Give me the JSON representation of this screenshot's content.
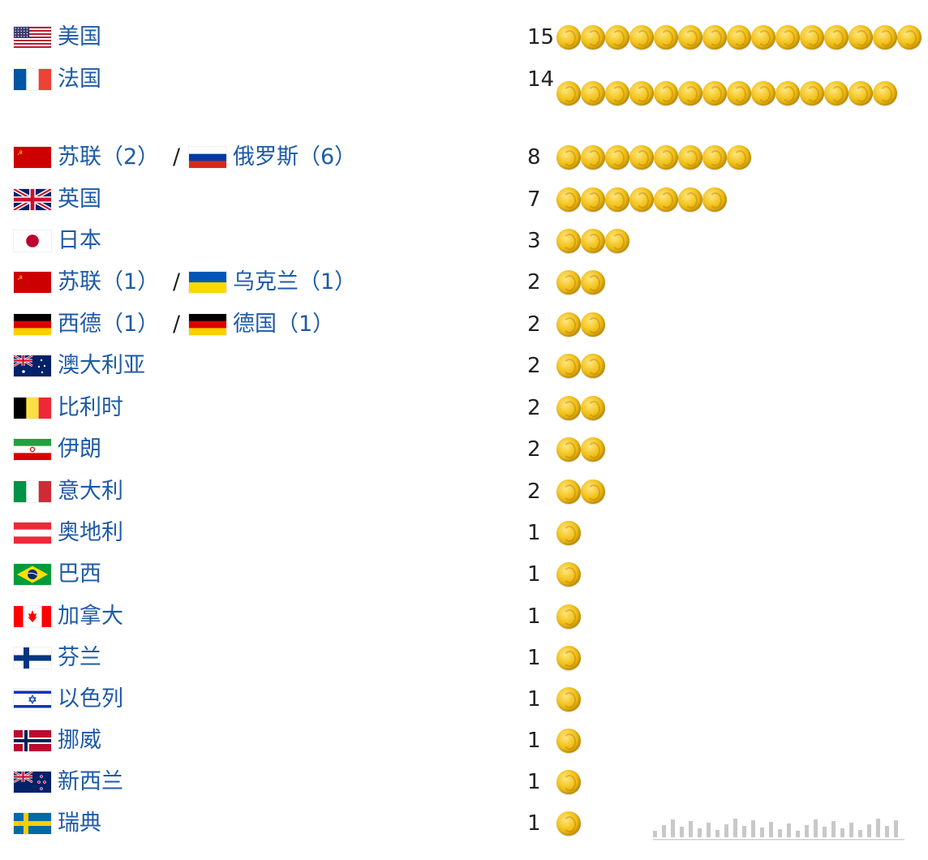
{
  "chart_data": {
    "type": "bar",
    "rows": [
      {
        "entries": [
          {
            "flag": "us",
            "label": "美国"
          }
        ],
        "value": 15,
        "value_text": "15"
      },
      {
        "entries": [
          {
            "flag": "fr",
            "label": "法国"
          }
        ],
        "value": 14,
        "value_text": "14"
      },
      {
        "entries": [
          {
            "flag": "su",
            "label": "苏联（2）"
          },
          {
            "flag": "ru",
            "label": "俄罗斯（6）"
          }
        ],
        "value": 8,
        "value_text": "8"
      },
      {
        "entries": [
          {
            "flag": "gb",
            "label": "英国"
          }
        ],
        "value": 7,
        "value_text": "7"
      },
      {
        "entries": [
          {
            "flag": "jp",
            "label": "日本"
          }
        ],
        "value": 3,
        "value_text": "3"
      },
      {
        "entries": [
          {
            "flag": "su",
            "label": "苏联（1）"
          },
          {
            "flag": "ua",
            "label": "乌克兰（1）"
          }
        ],
        "value": 2,
        "value_text": "2"
      },
      {
        "entries": [
          {
            "flag": "de",
            "label": "西德（1）"
          },
          {
            "flag": "de",
            "label": "德国（1）"
          }
        ],
        "value": 2,
        "value_text": "2"
      },
      {
        "entries": [
          {
            "flag": "au",
            "label": "澳大利亚"
          }
        ],
        "value": 2,
        "value_text": "2"
      },
      {
        "entries": [
          {
            "flag": "be",
            "label": "比利时"
          }
        ],
        "value": 2,
        "value_text": "2"
      },
      {
        "entries": [
          {
            "flag": "ir",
            "label": "伊朗"
          }
        ],
        "value": 2,
        "value_text": "2"
      },
      {
        "entries": [
          {
            "flag": "it",
            "label": "意大利"
          }
        ],
        "value": 2,
        "value_text": "2"
      },
      {
        "entries": [
          {
            "flag": "at",
            "label": "奥地利"
          }
        ],
        "value": 1,
        "value_text": "1"
      },
      {
        "entries": [
          {
            "flag": "br",
            "label": "巴西"
          }
        ],
        "value": 1,
        "value_text": "1"
      },
      {
        "entries": [
          {
            "flag": "ca",
            "label": "加拿大"
          }
        ],
        "value": 1,
        "value_text": "1"
      },
      {
        "entries": [
          {
            "flag": "fi",
            "label": "芬兰"
          }
        ],
        "value": 1,
        "value_text": "1"
      },
      {
        "entries": [
          {
            "flag": "il",
            "label": "以色列"
          }
        ],
        "value": 1,
        "value_text": "1"
      },
      {
        "entries": [
          {
            "flag": "no",
            "label": "挪威"
          }
        ],
        "value": 1,
        "value_text": "1"
      },
      {
        "entries": [
          {
            "flag": "nz",
            "label": "新西兰"
          }
        ],
        "value": 1,
        "value_text": "1"
      },
      {
        "entries": [
          {
            "flag": "se",
            "label": "瑞典"
          }
        ],
        "value": 1,
        "value_text": "1"
      }
    ]
  },
  "separator": "/",
  "colors": {
    "label": "#1e5aa8",
    "count": "#222222",
    "coin": "#f2c21a"
  }
}
